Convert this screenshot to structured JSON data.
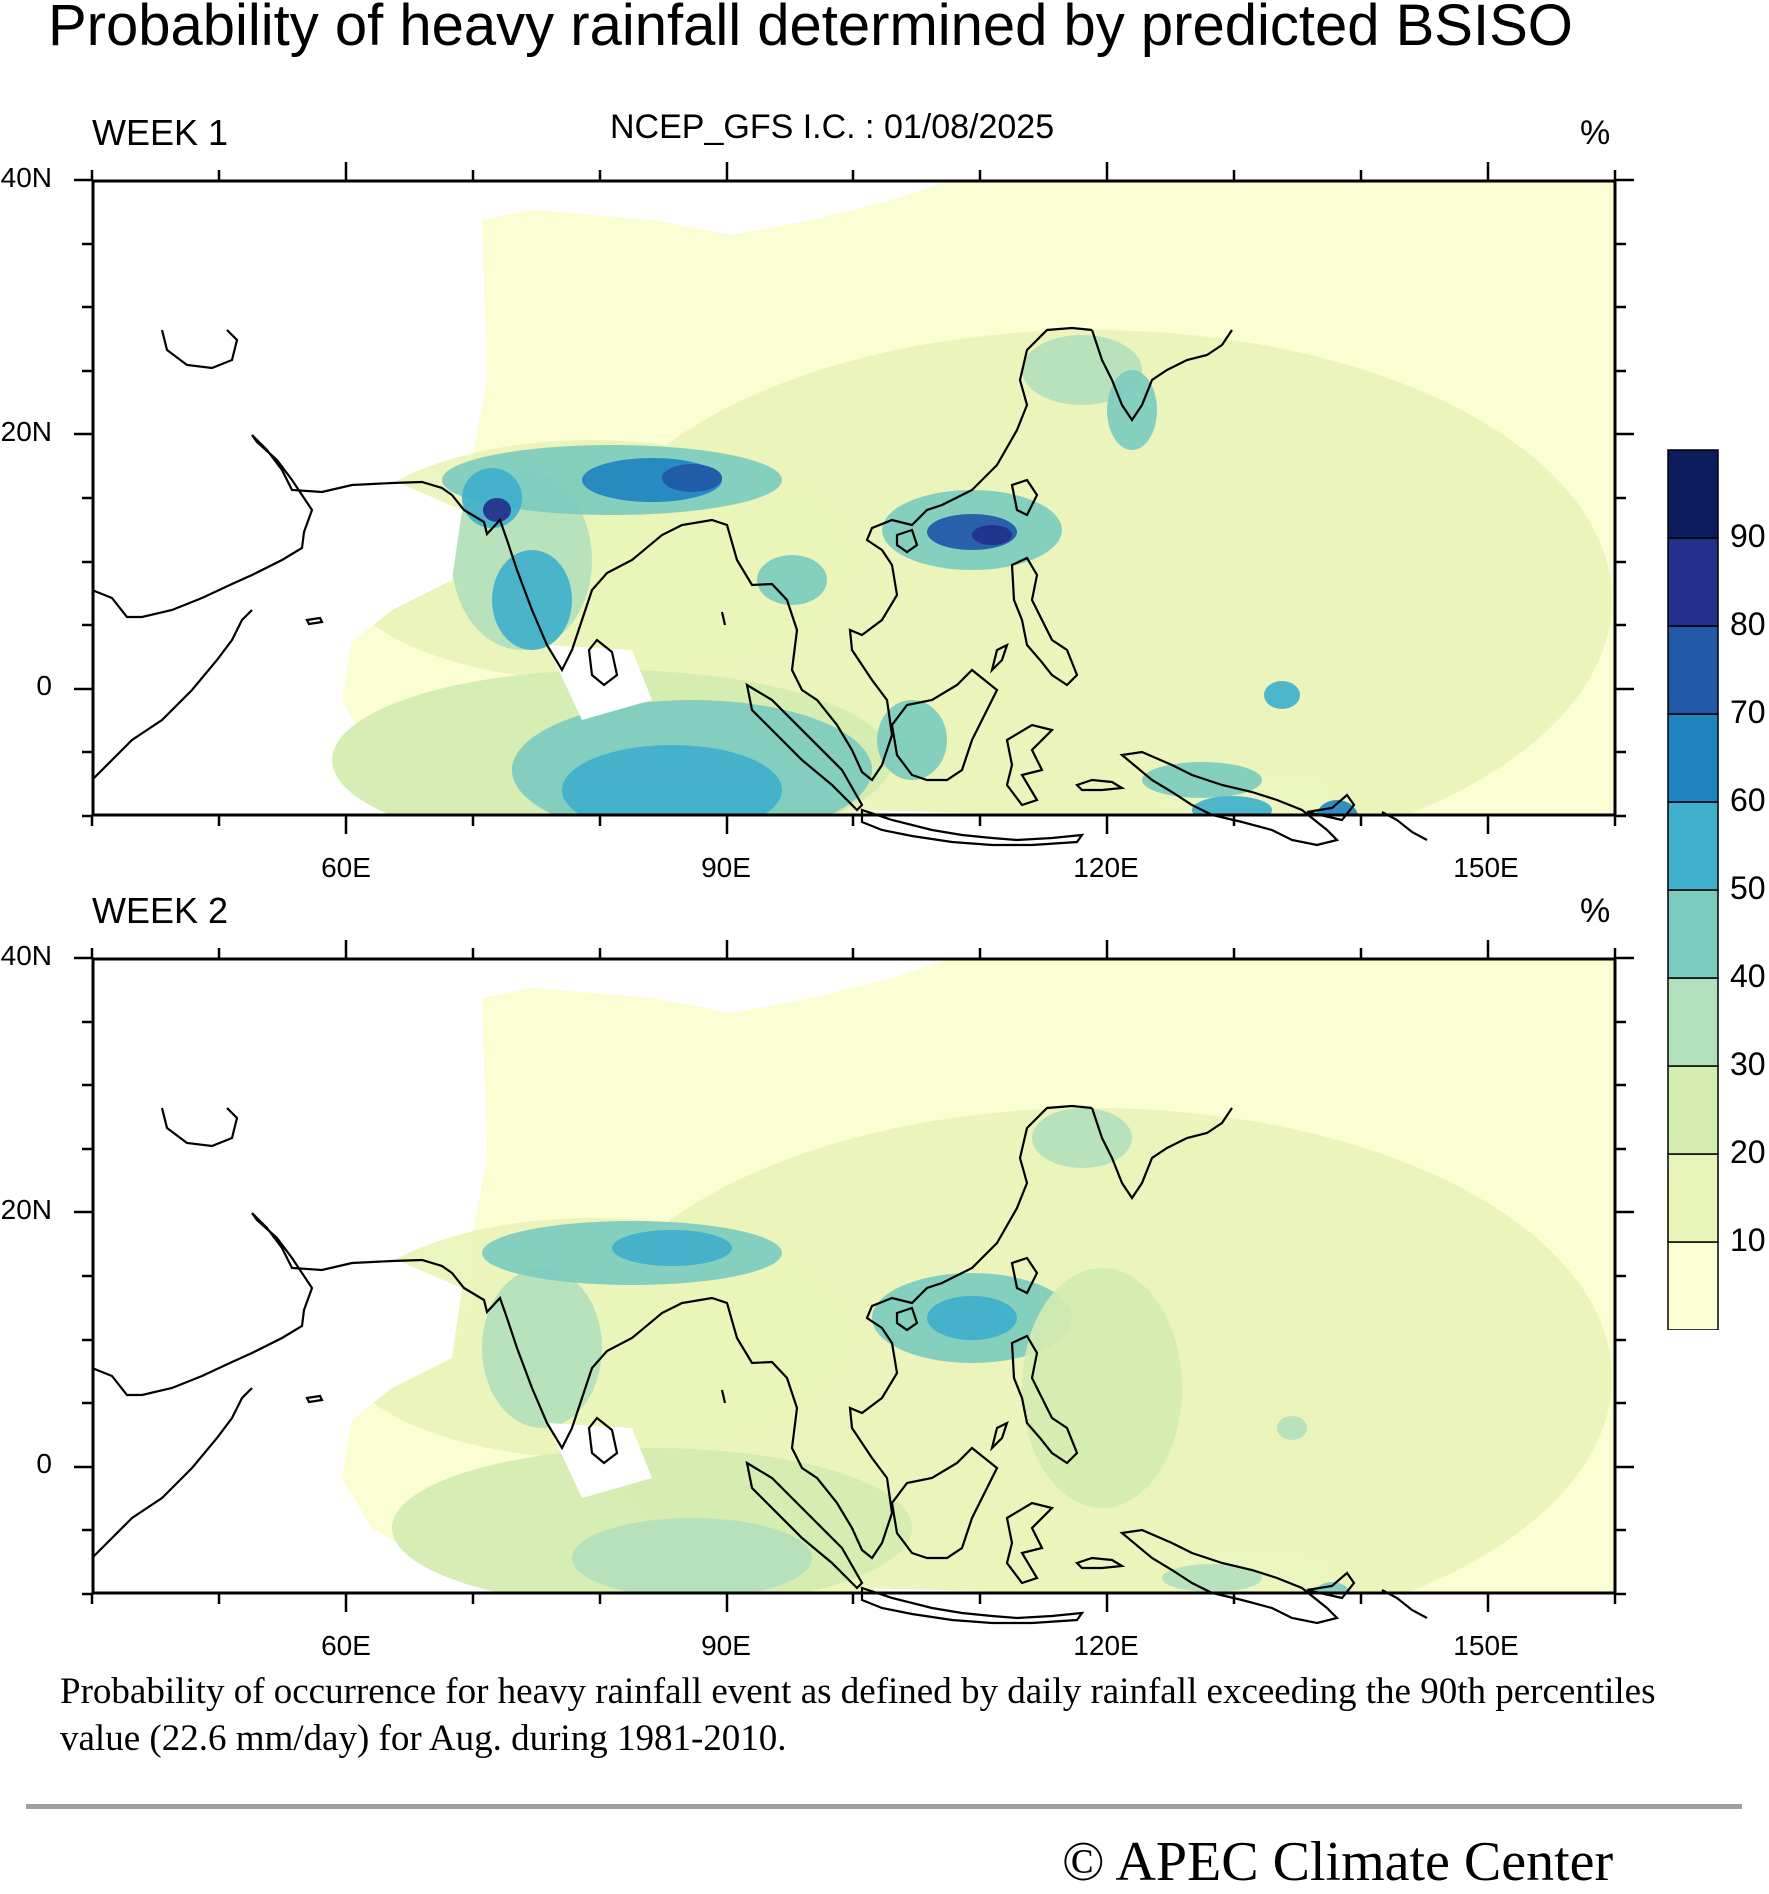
{
  "title": "Probability of heavy rainfall determined by predicted BSISO",
  "subtitle": "NCEP_GFS  I.C. : 01/08/2025",
  "panels": [
    {
      "label": "WEEK 1",
      "unit": "%"
    },
    {
      "label": "WEEK 2",
      "unit": "%"
    }
  ],
  "lat_ticks": [
    "40N",
    "20N",
    "0"
  ],
  "lon_ticks": [
    "60E",
    "90E",
    "120E",
    "150E"
  ],
  "colorbar": {
    "levels": [
      "10",
      "20",
      "30",
      "40",
      "50",
      "60",
      "70",
      "80",
      "90"
    ],
    "colors": [
      "#fbfdd2",
      "#e9f4b9",
      "#d3ecb0",
      "#b3e0bc",
      "#7ccbbf",
      "#3fb0cb",
      "#1f84c0",
      "#2158a7",
      "#23318c",
      "#0c1d5e"
    ]
  },
  "caption": "Probability of occurrence for heavy rainfall event as defined by daily rainfall exceeding the 90th percentiles value (22.6 mm/day) for Aug. during 1981-2010.",
  "credit": "©  APEC Climate Center"
}
